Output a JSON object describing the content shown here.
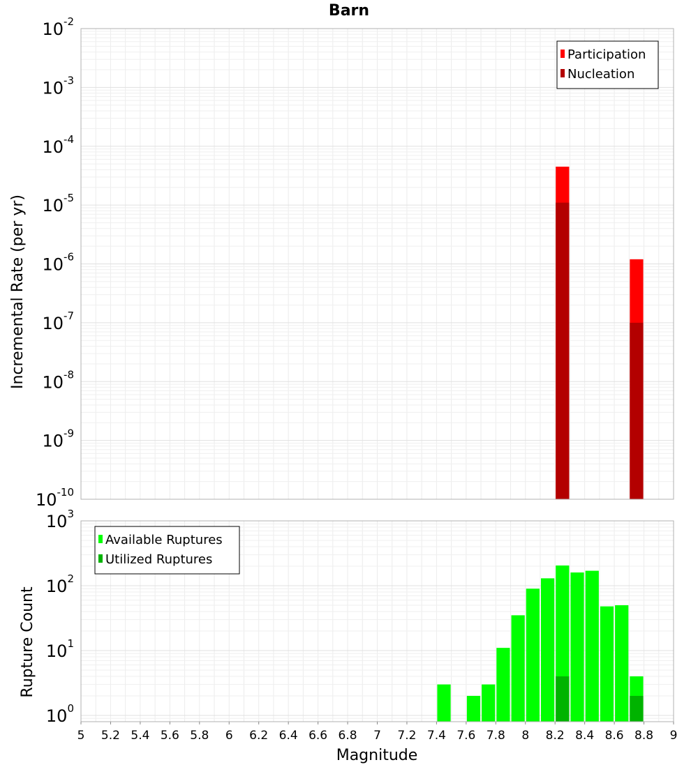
{
  "chart_data": [
    {
      "type": "bar",
      "title": "Barn",
      "ylabel": "Incremental Rate (per yr)",
      "xlabel": "",
      "yscale": "log",
      "ylim": [
        1e-10,
        0.01
      ],
      "xlim": [
        5,
        9
      ],
      "bin_width": 0.1,
      "y_ticks": [
        {
          "base": "10",
          "exp": "-10",
          "value": 1e-10
        },
        {
          "base": "10",
          "exp": "-9",
          "value": 1e-09
        },
        {
          "base": "10",
          "exp": "-8",
          "value": 1e-08
        },
        {
          "base": "10",
          "exp": "-7",
          "value": 1e-07
        },
        {
          "base": "10",
          "exp": "-6",
          "value": 1e-06
        },
        {
          "base": "10",
          "exp": "-5",
          "value": 1e-05
        },
        {
          "base": "10",
          "exp": "-4",
          "value": 0.0001
        },
        {
          "base": "10",
          "exp": "-3",
          "value": 0.001
        },
        {
          "base": "10",
          "exp": "-2",
          "value": 0.01
        }
      ],
      "legend_position": "top-right",
      "series": [
        {
          "name": "Participation",
          "color": "#ff0000",
          "x": [
            8.25,
            8.75
          ],
          "values": [
            4.5e-05,
            1.2e-06
          ]
        },
        {
          "name": "Nucleation",
          "color": "#b30000",
          "x": [
            8.25,
            8.75
          ],
          "values": [
            1.1e-05,
            1e-07
          ]
        }
      ]
    },
    {
      "type": "bar",
      "title": "",
      "ylabel": "Rupture Count",
      "xlabel": "Magnitude",
      "yscale": "log",
      "ylim": [
        0.8,
        1000
      ],
      "xlim": [
        5,
        9
      ],
      "bin_width": 0.1,
      "y_ticks": [
        {
          "base": "10",
          "exp": "0",
          "value": 1
        },
        {
          "base": "10",
          "exp": "1",
          "value": 10
        },
        {
          "base": "10",
          "exp": "2",
          "value": 100
        },
        {
          "base": "10",
          "exp": "3",
          "value": 1000
        }
      ],
      "x_ticks": [
        "5",
        "5.2",
        "5.4",
        "5.6",
        "5.8",
        "6",
        "6.2",
        "6.4",
        "6.6",
        "6.8",
        "7",
        "7.2",
        "7.4",
        "7.6",
        "7.8",
        "8",
        "8.2",
        "8.4",
        "8.6",
        "8.8",
        "9"
      ],
      "legend_position": "top-left",
      "series": [
        {
          "name": "Available Ruptures",
          "color": "#00ff00",
          "x": [
            7.45,
            7.65,
            7.75,
            7.85,
            7.95,
            8.05,
            8.15,
            8.25,
            8.35,
            8.45,
            8.55,
            8.65,
            8.75
          ],
          "values": [
            3,
            2,
            3,
            11,
            35,
            90,
            130,
            205,
            160,
            170,
            48,
            50,
            4
          ]
        },
        {
          "name": "Utilized Ruptures",
          "color": "#00b300",
          "x": [
            8.25,
            8.75
          ],
          "values": [
            4,
            2
          ]
        }
      ]
    }
  ]
}
